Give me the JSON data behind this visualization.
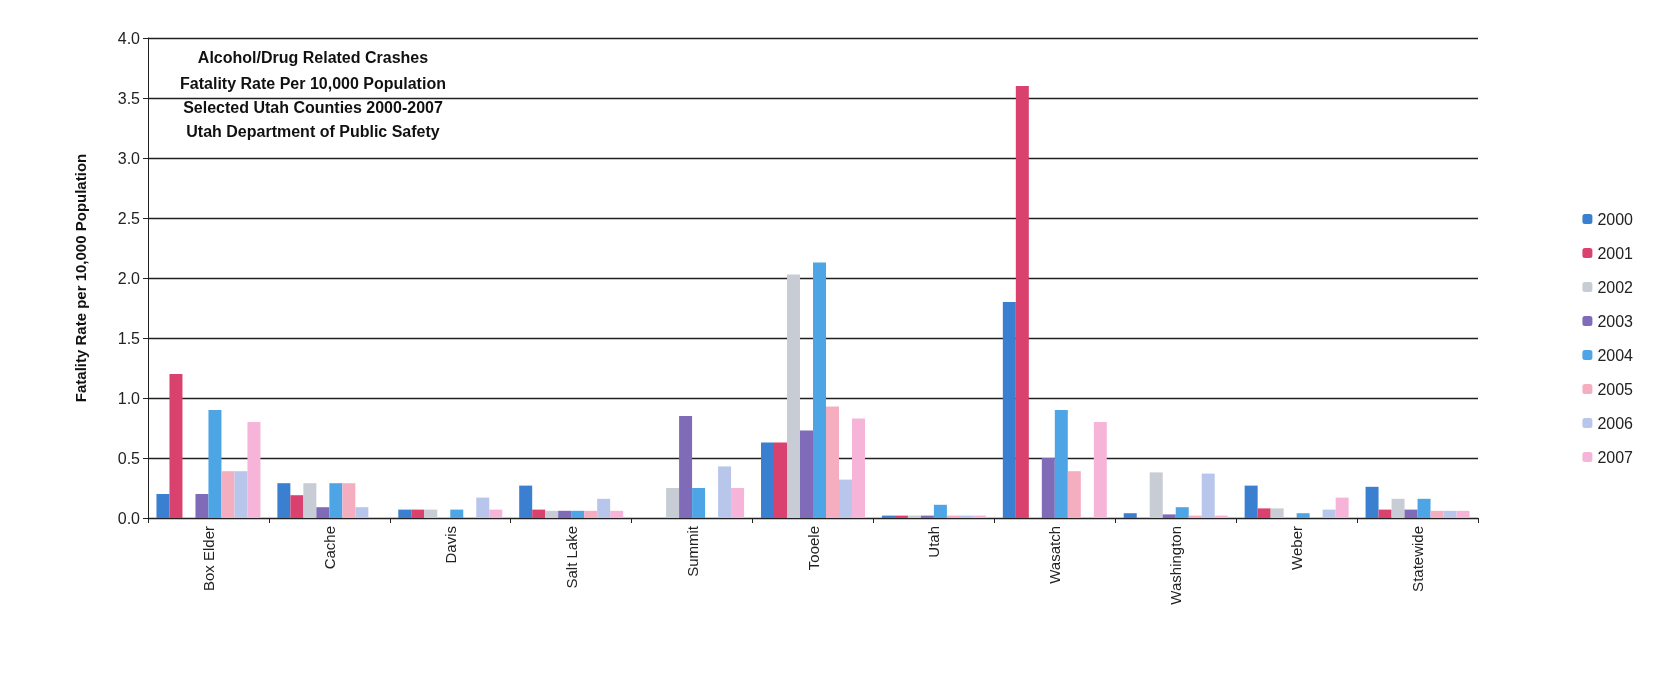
{
  "chart_data": {
    "type": "bar",
    "title": "Alcohol/Drug Related Crashes",
    "subtitle": "Fatality Rate Per 10,000 Population",
    "annotations": [
      "Selected Utah Counties 2000-2007",
      "Utah Department of Public Safety"
    ],
    "ylabel": "Fatality Rate per 10,000 Population",
    "categories": [
      "Box Elder",
      "Cache",
      "Davis",
      "Salt Lake",
      "Summit",
      "Tooele",
      "Utah",
      "Wasatch",
      "Washington",
      "Weber",
      "Statewide"
    ],
    "series": [
      {
        "name": "2000",
        "color": "#3b7fd0",
        "values": [
          0.2,
          0.29,
          0.07,
          0.27,
          null,
          0.63,
          0.02,
          1.8,
          0.04,
          0.27,
          0.26
        ]
      },
      {
        "name": "2001",
        "color": "#d9426e",
        "values": [
          1.2,
          0.19,
          0.07,
          0.07,
          null,
          0.63,
          0.02,
          3.6,
          null,
          0.08,
          0.07
        ]
      },
      {
        "name": "2002",
        "color": "#c8ccd4",
        "values": [
          null,
          0.29,
          0.07,
          0.06,
          0.25,
          2.03,
          0.02,
          null,
          0.38,
          0.08,
          0.16
        ]
      },
      {
        "name": "2003",
        "color": "#7f6bb8",
        "values": [
          0.2,
          0.09,
          null,
          0.06,
          0.85,
          0.73,
          0.02,
          0.5,
          0.03,
          null,
          0.07
        ]
      },
      {
        "name": "2004",
        "color": "#4ea5e5",
        "values": [
          0.9,
          0.29,
          0.07,
          0.06,
          0.25,
          2.13,
          0.11,
          0.9,
          0.09,
          0.04,
          0.16
        ]
      },
      {
        "name": "2005",
        "color": "#f5aec0",
        "values": [
          0.39,
          0.29,
          null,
          0.06,
          null,
          0.93,
          0.02,
          0.39,
          0.02,
          null,
          0.06
        ]
      },
      {
        "name": "2006",
        "color": "#b8c6ec",
        "values": [
          0.39,
          0.09,
          0.17,
          0.16,
          0.43,
          0.32,
          0.02,
          null,
          0.37,
          0.07,
          0.06
        ]
      },
      {
        "name": "2007",
        "color": "#f6b5d8",
        "values": [
          0.8,
          null,
          0.07,
          0.06,
          0.25,
          0.83,
          0.02,
          0.8,
          0.02,
          0.17,
          0.06
        ]
      }
    ],
    "ylim": [
      0,
      4
    ],
    "yticks": [
      {
        "value": 0,
        "label": "0.0"
      },
      0.5,
      {
        "value": 1,
        "label": "1.0"
      },
      1.5,
      {
        "value": 2,
        "label": "2.0"
      },
      2.5,
      {
        "value": 3,
        "label": "3.0"
      },
      3.5,
      {
        "value": 4,
        "label": "4.0"
      }
    ],
    "grid": "y",
    "legend": "right"
  }
}
